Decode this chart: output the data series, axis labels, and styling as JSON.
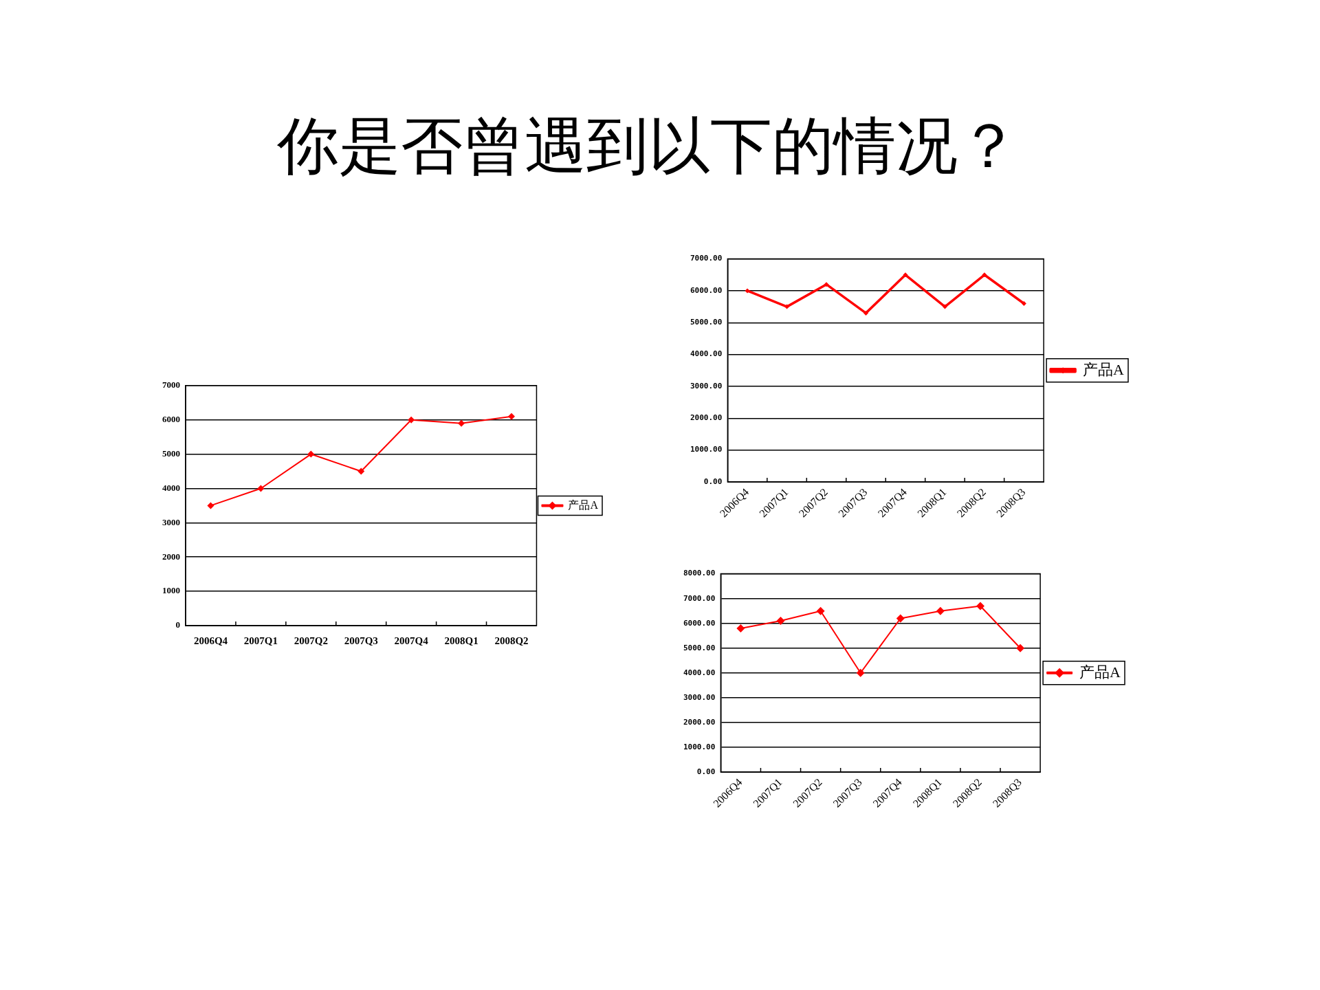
{
  "chart_data": [
    {
      "type": "line",
      "title": "你是否曾遇到以下的情况？",
      "categories": [
        "2006Q4",
        "2007Q1",
        "2007Q2",
        "2007Q3",
        "2007Q4",
        "2008Q1",
        "2008Q2"
      ],
      "series": [
        {
          "name": "产品A",
          "color": "#ff0000",
          "values": [
            3500,
            4000,
            5000,
            4500,
            6000,
            5900,
            6100
          ]
        }
      ],
      "ylim": [
        0,
        7000
      ],
      "yticks": [
        0,
        1000,
        2000,
        3000,
        4000,
        5000,
        6000,
        7000
      ],
      "grid": "y",
      "legend": "right",
      "marker": "diamond",
      "line_style": "solid"
    },
    {
      "type": "line",
      "categories": [
        "2006Q4",
        "2007Q1",
        "2007Q2",
        "2007Q3",
        "2007Q4",
        "2008Q1",
        "2008Q2",
        "2008Q3"
      ],
      "series": [
        {
          "name": "产品A",
          "color": "#ff0000",
          "values": [
            6000,
            5500,
            6200,
            5300,
            6500,
            5500,
            6500,
            5600
          ]
        }
      ],
      "ylim": [
        0,
        7000
      ],
      "yticks": [
        {
          "value": 0,
          "label": "0.00"
        },
        {
          "value": 1000,
          "label": "1000.00"
        },
        {
          "value": 2000,
          "label": "2000.00"
        },
        {
          "value": 3000,
          "label": "3000.00"
        },
        {
          "value": 4000,
          "label": "4000.00"
        },
        {
          "value": 5000,
          "label": "5000.00"
        },
        {
          "value": 6000,
          "label": "6000.00"
        },
        {
          "value": 7000,
          "label": "7000.00"
        }
      ],
      "grid": "y",
      "legend": "right",
      "marker": "diamond",
      "line_style": "solid"
    },
    {
      "type": "line",
      "categories": [
        "2006Q4",
        "2007Q1",
        "2007Q2",
        "2007Q3",
        "2007Q4",
        "2008Q1",
        "2008Q2",
        "2008Q3"
      ],
      "series": [
        {
          "name": "产品A",
          "color": "#ff0000",
          "values": [
            5800,
            6100,
            6500,
            4000,
            6200,
            6500,
            6700,
            5000
          ]
        }
      ],
      "ylim": [
        0,
        8000
      ],
      "yticks": [
        {
          "value": 0,
          "label": "0.00"
        },
        {
          "value": 1000,
          "label": "1000.00"
        },
        {
          "value": 2000,
          "label": "2000.00"
        },
        {
          "value": 3000,
          "label": "3000.00"
        },
        {
          "value": 4000,
          "label": "4000.00"
        },
        {
          "value": 5000,
          "label": "5000.00"
        },
        {
          "value": 6000,
          "label": "6000.00"
        },
        {
          "value": 7000,
          "label": "7000.00"
        },
        {
          "value": 8000,
          "label": "8000.00"
        }
      ],
      "grid": "y",
      "legend": "right",
      "marker": "diamond",
      "line_style": "solid"
    }
  ]
}
